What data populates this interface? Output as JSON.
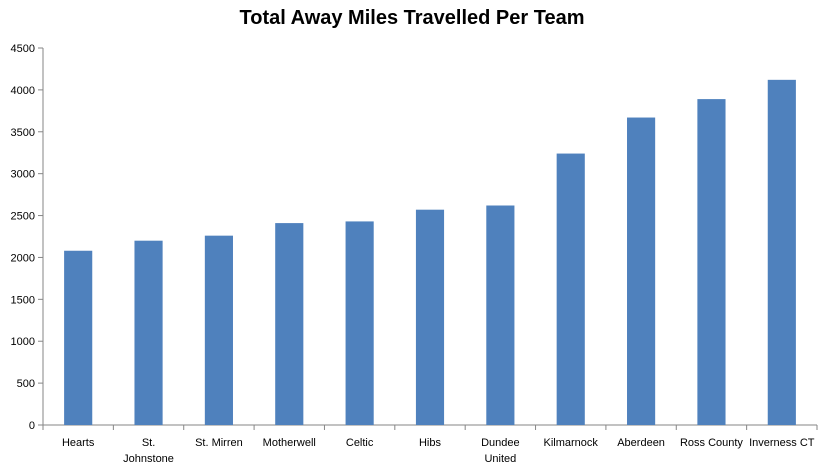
{
  "chart_data": {
    "type": "bar",
    "title": "Total Away Miles Travelled Per Team",
    "xlabel": "",
    "ylabel": "",
    "ylim": [
      0,
      4500
    ],
    "yticks": [
      0,
      500,
      1000,
      1500,
      2000,
      2500,
      3000,
      3500,
      4000,
      4500
    ],
    "grid": false,
    "legend": "none",
    "bar_color": "#4F81BD",
    "categories": [
      [
        "Hearts"
      ],
      [
        "St.",
        "Johnstone"
      ],
      [
        "St. Mirren"
      ],
      [
        "Motherwell"
      ],
      [
        "Celtic"
      ],
      [
        "Hibs"
      ],
      [
        "Dundee",
        "United"
      ],
      [
        "Kilmarnock"
      ],
      [
        "Aberdeen"
      ],
      [
        "Ross County"
      ],
      [
        "Inverness CT"
      ]
    ],
    "values": [
      2080,
      2200,
      2260,
      2410,
      2430,
      2570,
      2620,
      3240,
      3670,
      3890,
      4120
    ]
  }
}
